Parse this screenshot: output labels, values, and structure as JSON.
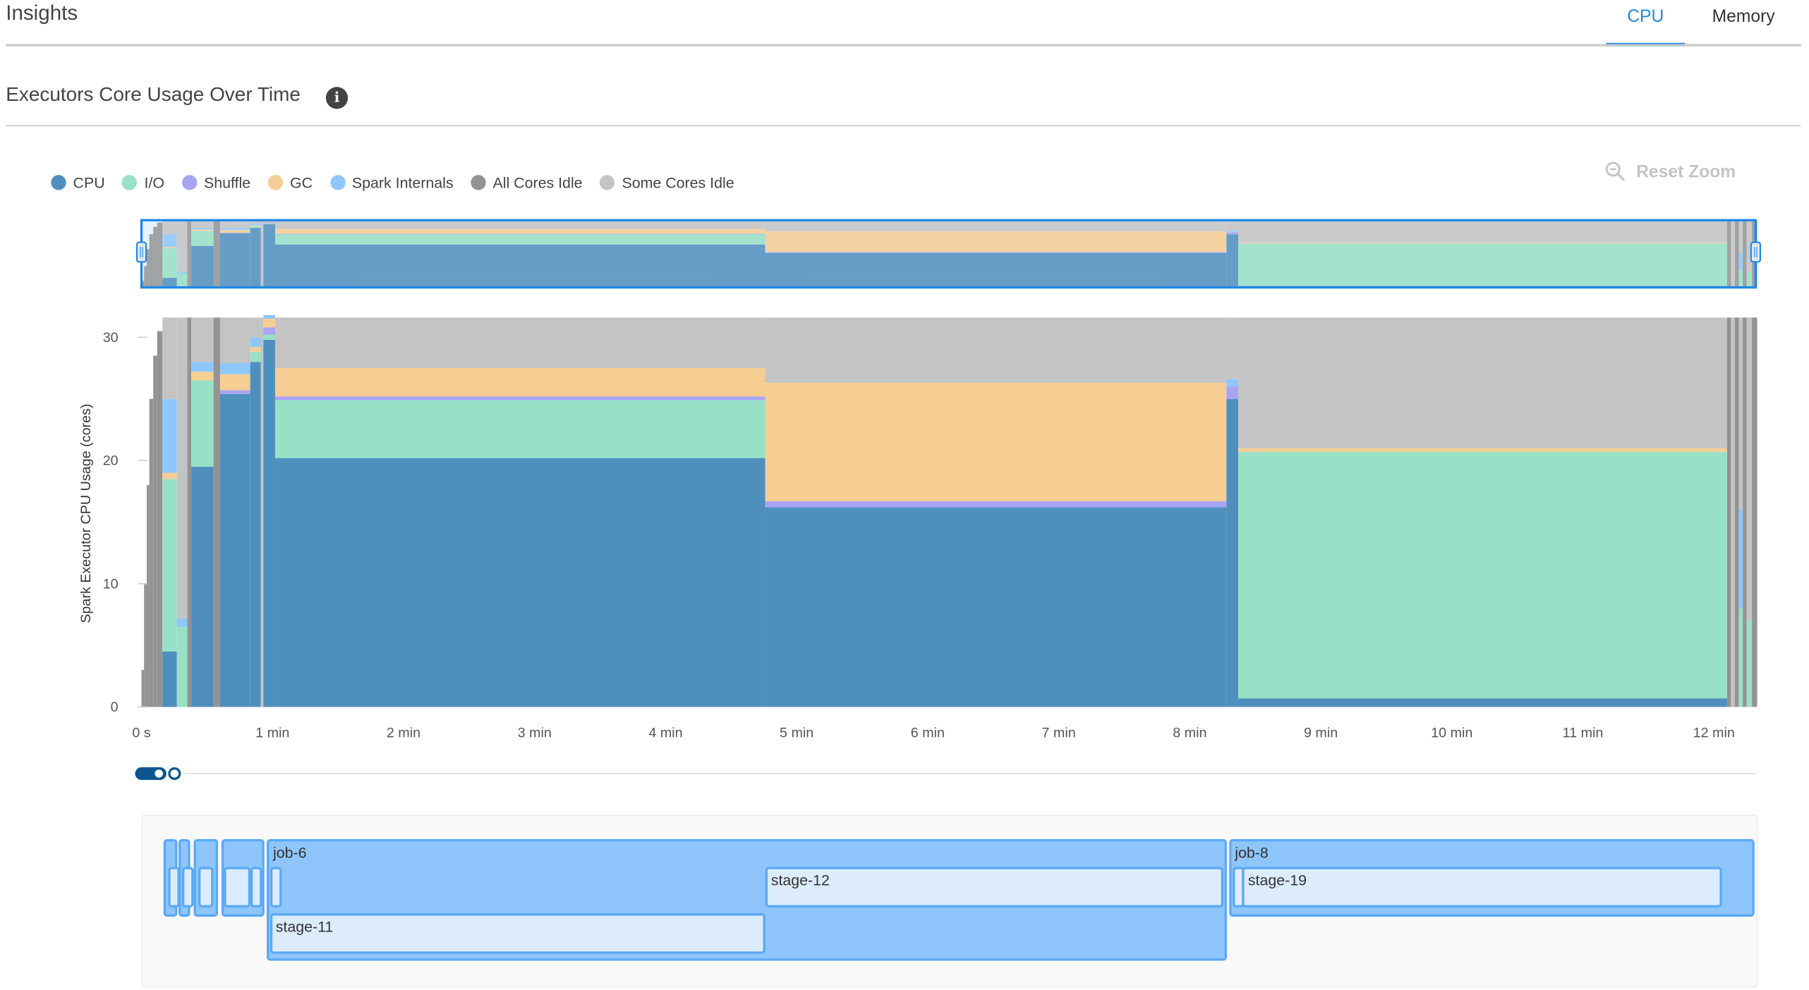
{
  "header": {
    "title": "Insights",
    "tabs": [
      {
        "label": "CPU",
        "active": true
      },
      {
        "label": "Memory",
        "active": false
      }
    ]
  },
  "section": {
    "title": "Executors Core Usage Over Time",
    "info_icon": "info-icon",
    "reset_zoom": "Reset Zoom",
    "reset_icon": "zoom-out-icon"
  },
  "chart_data": {
    "type": "area",
    "title": "",
    "xlabel": "",
    "ylabel": "Spark Executor CPU Usage (cores)",
    "xlim": [
      0,
      12.33
    ],
    "ylim": [
      0,
      31.6
    ],
    "x_unit": "min",
    "x_ticks": [
      {
        "v": 0,
        "label": "0 s"
      },
      {
        "v": 1,
        "label": "1 min"
      },
      {
        "v": 2,
        "label": "2 min"
      },
      {
        "v": 3,
        "label": "3 min"
      },
      {
        "v": 4,
        "label": "4 min"
      },
      {
        "v": 5,
        "label": "5 min"
      },
      {
        "v": 6,
        "label": "6 min"
      },
      {
        "v": 7,
        "label": "7 min"
      },
      {
        "v": 8,
        "label": "8 min"
      },
      {
        "v": 9,
        "label": "9 min"
      },
      {
        "v": 10,
        "label": "10 min"
      },
      {
        "v": 11,
        "label": "11 min"
      },
      {
        "v": 12,
        "label": "12 min"
      }
    ],
    "y_ticks": [
      0,
      10,
      20,
      30
    ],
    "legend_position": "top-left",
    "grid": false,
    "series": [
      {
        "key": "cpu",
        "name": "CPU",
        "color": "#4f8fbd"
      },
      {
        "key": "io",
        "name": "I/O",
        "color": "#98e1c6"
      },
      {
        "key": "shuffle",
        "name": "Shuffle",
        "color": "#a8a4f5"
      },
      {
        "key": "gc",
        "name": "GC",
        "color": "#f6cd92"
      },
      {
        "key": "si",
        "name": "Spark Internals",
        "color": "#8ec7fb"
      },
      {
        "key": "all_idle",
        "name": "All Cores Idle",
        "color": "#939393"
      },
      {
        "key": "some_idle",
        "name": "Some Cores Idle",
        "color": "#c4c4c4"
      }
    ],
    "segments": [
      {
        "start": 0.0,
        "end": 0.02,
        "all_idle": 3
      },
      {
        "start": 0.02,
        "end": 0.04,
        "all_idle": 10
      },
      {
        "start": 0.04,
        "end": 0.06,
        "all_idle": 18
      },
      {
        "start": 0.06,
        "end": 0.09,
        "all_idle": 25
      },
      {
        "start": 0.09,
        "end": 0.12,
        "all_idle": 28.5
      },
      {
        "start": 0.12,
        "end": 0.16,
        "all_idle": 30.5
      },
      {
        "start": 0.16,
        "end": 0.27,
        "cpu": 4.5,
        "io": 14,
        "gc": 0.5,
        "si": 6,
        "some_idle": 6
      },
      {
        "start": 0.27,
        "end": 0.35,
        "io": 6.5,
        "si": 0.7,
        "some_idle": 24.4
      },
      {
        "start": 0.35,
        "end": 0.38,
        "all_idle": 31.6
      },
      {
        "start": 0.38,
        "end": 0.55,
        "cpu": 19.5,
        "io": 7,
        "gc": 0.7,
        "si": 0.8,
        "some_idle": 3.6
      },
      {
        "start": 0.55,
        "end": 0.6,
        "all_idle": 31.6
      },
      {
        "start": 0.6,
        "end": 0.83,
        "cpu": 25.4,
        "shuffle": 0.3,
        "gc": 1.3,
        "si": 0.9,
        "some_idle": 3.7
      },
      {
        "start": 0.83,
        "end": 0.91,
        "cpu": 28,
        "io": 0.8,
        "gc": 0.4,
        "si": 0.8,
        "some_idle": 1.6
      },
      {
        "start": 0.91,
        "end": 0.93,
        "some_idle": 31.6
      },
      {
        "start": 0.93,
        "end": 1.02,
        "cpu": 29.8,
        "io": 0.4,
        "shuffle": 0.6,
        "gc": 0.7,
        "si": 0.3
      },
      {
        "start": 1.02,
        "end": 4.76,
        "cpu": 20.2,
        "io": 4.7,
        "shuffle": 0.3,
        "gc": 2.3,
        "some_idle": 4.1
      },
      {
        "start": 4.76,
        "end": 8.28,
        "cpu": 16.2,
        "shuffle": 0.5,
        "gc": 9.6,
        "some_idle": 5.3
      },
      {
        "start": 8.28,
        "end": 8.37,
        "cpu": 25,
        "shuffle": 1,
        "si": 0.6,
        "some_idle": 5
      },
      {
        "start": 8.37,
        "end": 12.1,
        "cpu": 0.7,
        "io": 20,
        "gc": 0.3,
        "some_idle": 10.6
      },
      {
        "start": 12.1,
        "end": 12.13,
        "all_idle": 31.6
      },
      {
        "start": 12.13,
        "end": 12.16,
        "some_idle": 31.6
      },
      {
        "start": 12.16,
        "end": 12.19,
        "all_idle": 31.6
      },
      {
        "start": 12.19,
        "end": 12.22,
        "io": 8,
        "si": 8,
        "some_idle": 15.6
      },
      {
        "start": 12.22,
        "end": 12.25,
        "all_idle": 31.6
      },
      {
        "start": 12.25,
        "end": 12.29,
        "io": 7,
        "some_idle": 24.6
      },
      {
        "start": 12.29,
        "end": 12.33,
        "all_idle": 31.6
      }
    ]
  },
  "timeline": {
    "jobs": [
      {
        "label": "",
        "start": 0.17,
        "end": 0.27,
        "row": 0
      },
      {
        "label": "",
        "start": 0.28,
        "end": 0.37,
        "row": 0
      },
      {
        "label": "",
        "start": 0.4,
        "end": 0.58,
        "row": 0
      },
      {
        "label": "",
        "start": 0.61,
        "end": 0.94,
        "row": 0
      },
      {
        "label": "job-6",
        "start": 0.96,
        "end": 8.28,
        "row": 0,
        "tall": true
      },
      {
        "label": "job-8",
        "start": 8.3,
        "end": 12.31,
        "row": 0
      }
    ],
    "stages": [
      {
        "label": "",
        "start": 0.2,
        "end": 0.25,
        "row": 0
      },
      {
        "label": "",
        "start": 0.31,
        "end": 0.36,
        "row": 0
      },
      {
        "label": "",
        "start": 0.43,
        "end": 0.55,
        "row": 0
      },
      {
        "label": "",
        "start": 0.63,
        "end": 0.83,
        "row": 0
      },
      {
        "label": "",
        "start": 0.83,
        "end": 0.91,
        "row": 0
      },
      {
        "label": "",
        "start": 0.98,
        "end": 1.07,
        "row": 0
      },
      {
        "label": "stage-11",
        "start": 0.98,
        "end": 4.76,
        "row": 1
      },
      {
        "label": "stage-12",
        "start": 4.76,
        "end": 8.26,
        "row": 0
      },
      {
        "label": "",
        "start": 8.33,
        "end": 8.4,
        "row": 0
      },
      {
        "label": "stage-19",
        "start": 8.4,
        "end": 12.06,
        "row": 0
      }
    ]
  }
}
